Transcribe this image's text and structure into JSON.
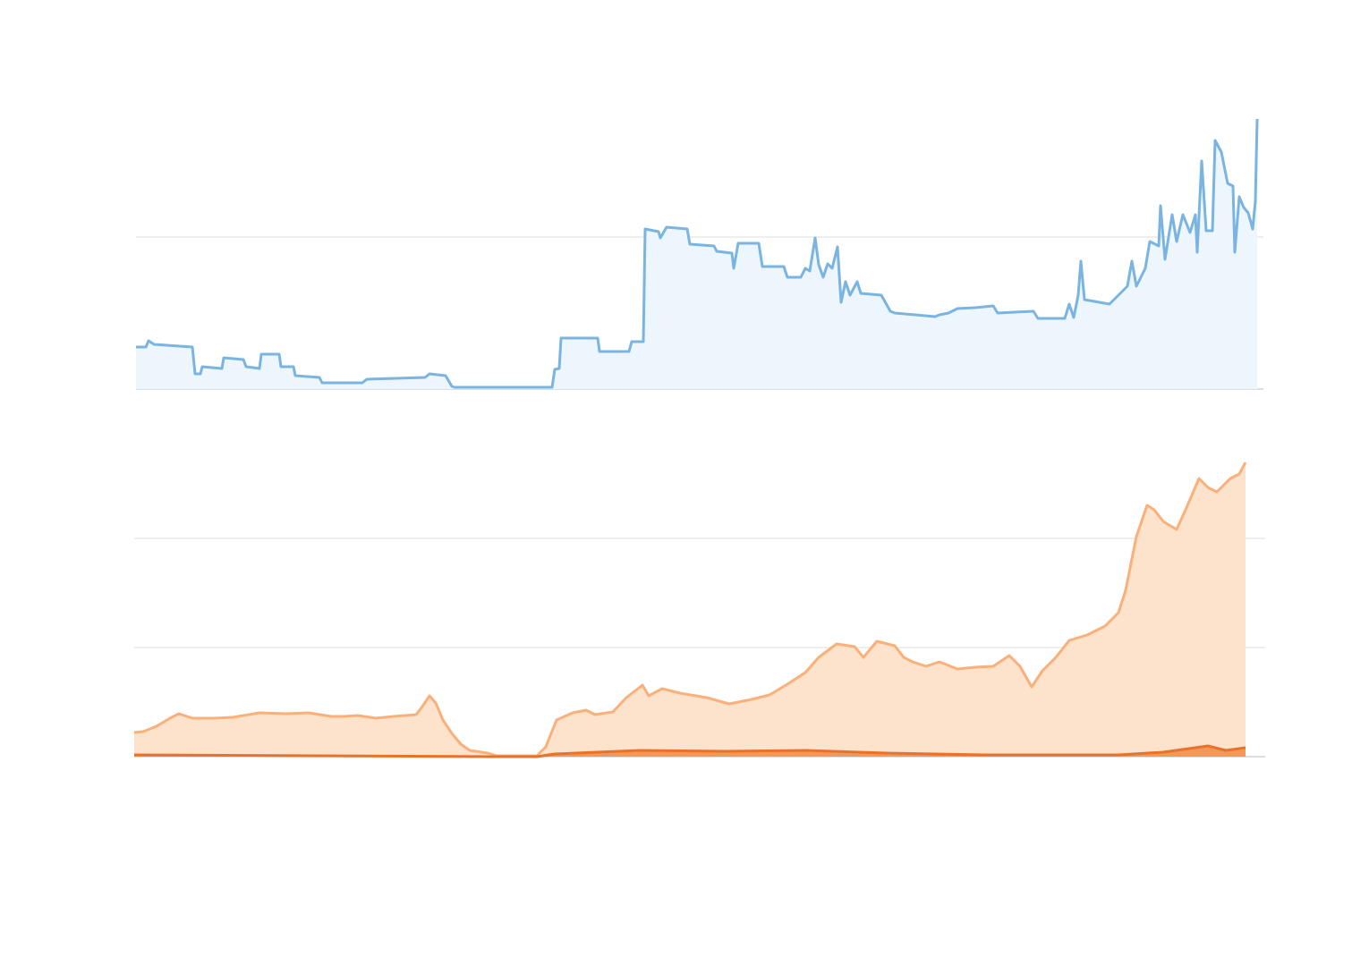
{
  "chart_data": [
    {
      "type": "area",
      "xlim": [
        0,
        1260
      ],
      "ylim": [
        0,
        340
      ],
      "yticks": [
        170
      ],
      "xticks": [
        22,
        183,
        341,
        503,
        660,
        820,
        978,
        1138
      ],
      "grid": true,
      "series": [
        {
          "color": "#7ab4e0",
          "fill": "#eef6fd",
          "x": [
            0,
            11,
            14,
            20,
            63,
            66,
            72,
            74,
            96,
            98,
            120,
            123,
            138,
            140,
            160,
            162,
            176,
            178,
            205,
            208,
            253,
            258,
            323,
            328,
            346,
            353,
            356,
            465,
            468,
            473,
            475,
            516,
            518,
            551,
            554,
            567,
            569,
            584,
            586,
            593,
            616,
            619,
            646,
            649,
            666,
            668,
            673,
            696,
            700,
            724,
            728,
            743,
            748,
            753,
            759,
            763,
            768,
            773,
            778,
            784,
            788,
            793,
            798,
            806,
            810,
            833,
            843,
            848,
            893,
            898,
            908,
            918,
            938,
            958,
            963,
            1003,
            1008,
            1038,
            1043,
            1048,
            1053,
            1056,
            1060,
            1088,
            1098,
            1108,
            1113,
            1118,
            1128,
            1133,
            1143,
            1145,
            1150,
            1158,
            1163,
            1170,
            1178,
            1184,
            1186,
            1191,
            1196,
            1203,
            1206,
            1213,
            1220,
            1226,
            1228,
            1233,
            1238,
            1243,
            1248,
            1251,
            1253
          ],
          "values": [
            47,
            47,
            54,
            50,
            47,
            17,
            17,
            25,
            23,
            35,
            33,
            25,
            23,
            39,
            39,
            25,
            25,
            15,
            13,
            7,
            7,
            11,
            13,
            17,
            15,
            3,
            2,
            2,
            22,
            23,
            57,
            57,
            42,
            42,
            53,
            53,
            179,
            176,
            169,
            181,
            179,
            162,
            160,
            154,
            152,
            135,
            163,
            163,
            137,
            137,
            125,
            125,
            135,
            132,
            169,
            139,
            125,
            140,
            135,
            159,
            97,
            120,
            105,
            120,
            107,
            105,
            87,
            85,
            81,
            83,
            85,
            90,
            91,
            93,
            85,
            87,
            79,
            79,
            95,
            80,
            105,
            143,
            100,
            95,
            105,
            115,
            143,
            115,
            135,
            165,
            160,
            205,
            145,
            195,
            165,
            195,
            175,
            195,
            153,
            255,
            177,
            177,
            278,
            265,
            230,
            227,
            153,
            215,
            203,
            197,
            179,
            210,
            302
          ]
        }
      ]
    },
    {
      "type": "area",
      "xlim": [
        0,
        1264
      ],
      "ylim": [
        0,
        366
      ],
      "yticks": [
        122,
        244
      ],
      "grid": true,
      "series": [
        {
          "color": "#f9b07a",
          "fill": "#fde3cb",
          "x": [
            0,
            10,
            25,
            40,
            50,
            65,
            90,
            110,
            140,
            170,
            195,
            220,
            235,
            250,
            270,
            290,
            315,
            322,
            330,
            337,
            345,
            355,
            365,
            375,
            395,
            405,
            450,
            460,
            472,
            490,
            505,
            515,
            535,
            550,
            568,
            575,
            590,
            610,
            640,
            665,
            690,
            710,
            730,
            750,
            765,
            785,
            805,
            815,
            830,
            850,
            860,
            870,
            885,
            900,
            920,
            940,
            960,
            978,
            990,
            1003,
            1015,
            1030,
            1045,
            1065,
            1085,
            1100,
            1108,
            1120,
            1132,
            1140,
            1150,
            1165,
            1175,
            1190,
            1200,
            1210,
            1225,
            1235,
            1242
          ],
          "values": [
            27,
            28,
            34,
            43,
            48,
            43,
            43,
            44,
            49,
            48,
            49,
            45,
            45,
            46,
            43,
            45,
            47,
            56,
            68,
            60,
            41,
            26,
            14,
            7,
            4,
            1,
            1,
            11,
            41,
            49,
            52,
            47,
            50,
            66,
            80,
            68,
            76,
            71,
            66,
            59,
            64,
            69,
            81,
            94,
            111,
            126,
            123,
            111,
            129,
            124,
            111,
            106,
            101,
            106,
            98,
            100,
            101,
            113,
            101,
            78,
            96,
            111,
            130,
            136,
            146,
            161,
            186,
            246,
            281,
            276,
            263,
            254,
            276,
            311,
            301,
            296,
            311,
            316,
            329
          ]
        },
        {
          "color": "#e8722a",
          "fill": "#ef9a5c",
          "x": [
            0,
            400,
            450,
            470,
            565,
            660,
            750,
            840,
            950,
            1100,
            1150,
            1200,
            1220,
            1242
          ],
          "values": [
            2,
            0,
            0,
            3,
            7,
            6,
            7,
            4,
            2,
            2,
            5,
            12,
            7,
            10
          ]
        }
      ]
    }
  ]
}
